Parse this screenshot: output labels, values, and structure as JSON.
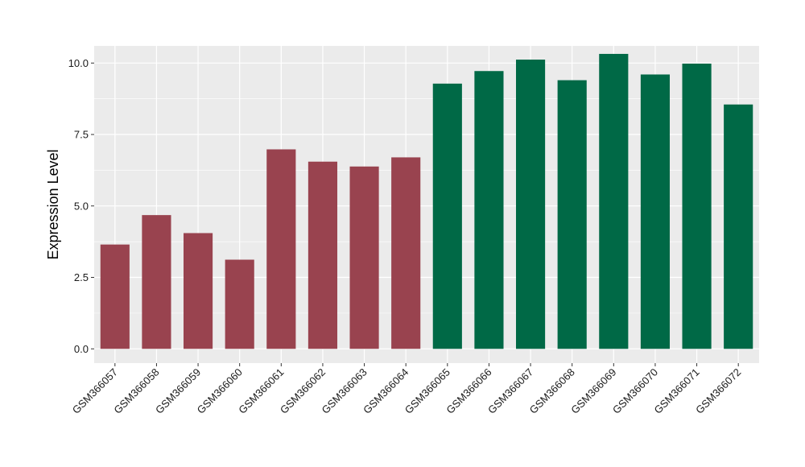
{
  "chart_data": {
    "type": "bar",
    "title": "",
    "xlabel": "",
    "ylabel": "Expression Level",
    "ylim": [
      -0.5,
      10.6
    ],
    "yticks": [
      0.0,
      2.5,
      5.0,
      7.5,
      10.0
    ],
    "ytick_labels": [
      "0.0",
      "2.5",
      "5.0",
      "7.5",
      "10.0"
    ],
    "grid": true,
    "categories": [
      "GSM366057",
      "GSM366058",
      "GSM366059",
      "GSM366060",
      "GSM366061",
      "GSM366062",
      "GSM366063",
      "GSM366064",
      "GSM366065",
      "GSM366066",
      "GSM366067",
      "GSM366068",
      "GSM366069",
      "GSM366070",
      "GSM366071",
      "GSM366072"
    ],
    "values": [
      3.65,
      4.68,
      4.05,
      3.12,
      6.98,
      6.55,
      6.38,
      6.7,
      9.28,
      9.72,
      10.12,
      9.4,
      10.32,
      9.6,
      9.98,
      8.55
    ],
    "bar_colors": [
      "#99434f",
      "#99434f",
      "#99434f",
      "#99434f",
      "#99434f",
      "#99434f",
      "#99434f",
      "#99434f",
      "#006946",
      "#006946",
      "#006946",
      "#006946",
      "#006946",
      "#006946",
      "#006946",
      "#006946"
    ],
    "panel_background": "#ebebeb",
    "grid_color": "#ffffff"
  }
}
